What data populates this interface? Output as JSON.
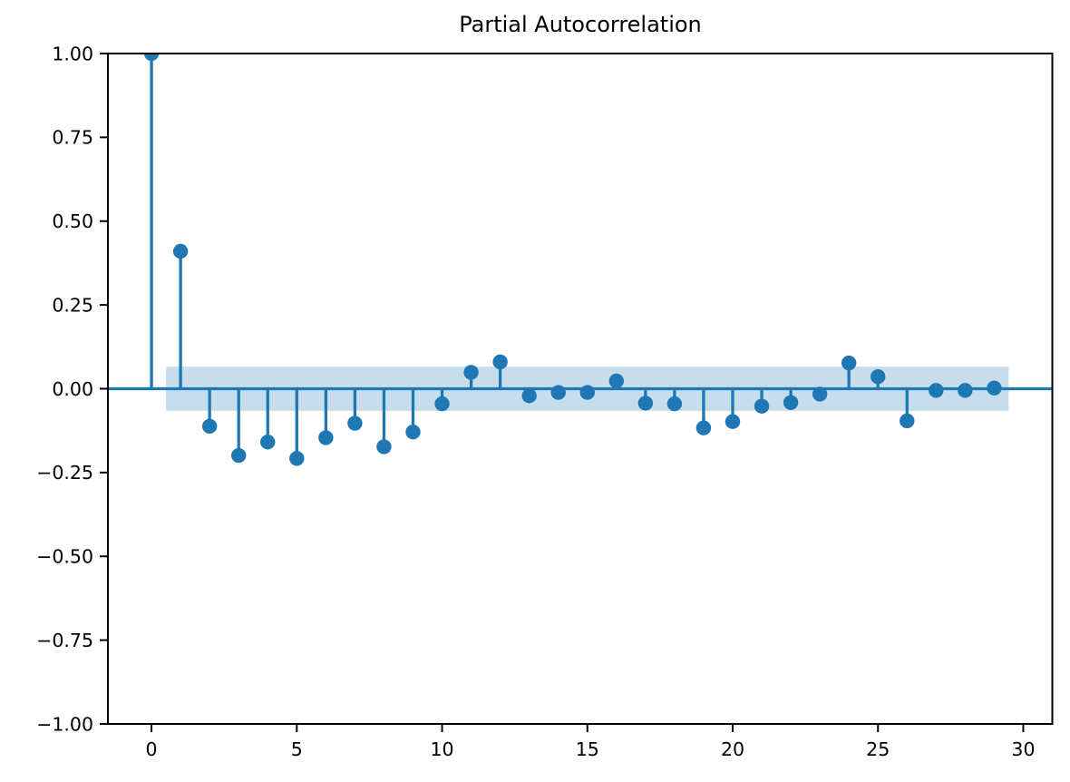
{
  "figure": {
    "background": "#ffffff"
  },
  "chart_data": {
    "type": "scatter",
    "style": "stem-pacf",
    "title": "Partial Autocorrelation",
    "xlabel": "",
    "ylabel": "",
    "grid": false,
    "x": [
      0,
      1,
      2,
      3,
      4,
      5,
      6,
      7,
      8,
      9,
      10,
      11,
      12,
      13,
      14,
      15,
      16,
      17,
      18,
      19,
      20,
      21,
      22,
      23,
      24,
      25,
      26,
      27,
      28,
      29
    ],
    "values": [
      1.0,
      0.41,
      -0.112,
      -0.199,
      -0.159,
      -0.208,
      -0.146,
      -0.103,
      -0.173,
      -0.129,
      -0.045,
      0.049,
      0.08,
      -0.021,
      -0.011,
      -0.011,
      0.023,
      -0.043,
      -0.045,
      -0.117,
      -0.098,
      -0.052,
      -0.041,
      -0.016,
      0.077,
      0.036,
      -0.096,
      -0.005,
      -0.005,
      0.002
    ],
    "confidence_band": {
      "low": -0.066,
      "high": 0.066,
      "x_start": 0.5,
      "x_end": 29.5
    },
    "xlim": [
      -1.5,
      31.0
    ],
    "ylim": [
      -1.0,
      1.0
    ],
    "x_ticks": [
      0,
      5,
      10,
      15,
      20,
      25,
      30
    ],
    "x_tick_labels": [
      "0",
      "5",
      "10",
      "15",
      "20",
      "25",
      "30"
    ],
    "y_ticks": [
      1.0,
      0.75,
      0.5,
      0.25,
      0.0,
      -0.25,
      -0.5,
      -0.75,
      -1.0
    ],
    "y_tick_labels": [
      "1.00",
      "0.75",
      "0.50",
      "0.25",
      "0.00",
      "−0.25",
      "−0.50",
      "−0.75",
      "−1.00"
    ],
    "colors": {
      "stem": "#1f77b4",
      "marker": "#1f77b4",
      "band": "#1f77b4",
      "band_opacity": 0.25,
      "axis": "#000000",
      "zero_line": "#1f77b4"
    }
  }
}
